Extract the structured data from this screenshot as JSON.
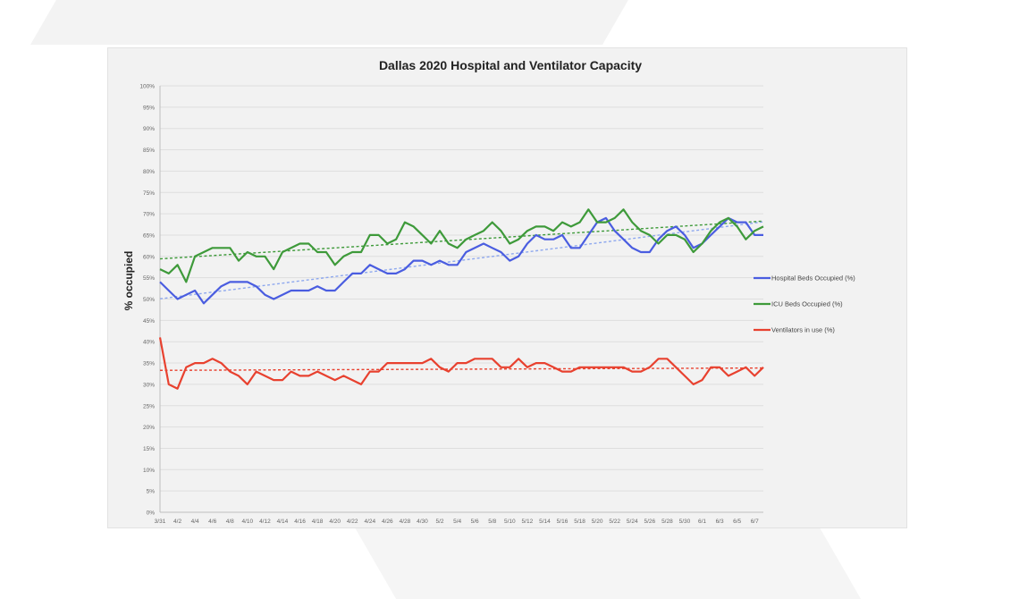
{
  "chart_data": {
    "type": "line",
    "title": "Dallas 2020 Hospital and Ventilator Capacity",
    "xlabel": "",
    "ylabel": "% occupied",
    "ylim": [
      0,
      100
    ],
    "yticks": [
      "0%",
      "5%",
      "10%",
      "15%",
      "20%",
      "25%",
      "30%",
      "35%",
      "40%",
      "45%",
      "50%",
      "55%",
      "60%",
      "65%",
      "70%",
      "75%",
      "80%",
      "85%",
      "90%",
      "95%",
      "100%"
    ],
    "x": [
      "3/31",
      "4/1",
      "4/2",
      "4/3",
      "4/4",
      "4/5",
      "4/6",
      "4/7",
      "4/8",
      "4/9",
      "4/10",
      "4/11",
      "4/12",
      "4/13",
      "4/14",
      "4/15",
      "4/16",
      "4/17",
      "4/18",
      "4/19",
      "4/20",
      "4/21",
      "4/22",
      "4/23",
      "4/24",
      "4/25",
      "4/26",
      "4/27",
      "4/28",
      "4/29",
      "4/30",
      "5/1",
      "5/2",
      "5/3",
      "5/4",
      "5/5",
      "5/6",
      "5/7",
      "5/8",
      "5/9",
      "5/10",
      "5/11",
      "5/12",
      "5/13",
      "5/14",
      "5/15",
      "5/16",
      "5/17",
      "5/18",
      "5/19",
      "5/20",
      "5/21",
      "5/22",
      "5/23",
      "5/24",
      "5/25",
      "5/26",
      "5/27",
      "5/28",
      "5/29",
      "5/30",
      "5/31",
      "6/1",
      "6/2",
      "6/3",
      "6/4",
      "6/5",
      "6/6",
      "6/7",
      "6/8"
    ],
    "xtick_labels": [
      "3/31",
      "4/2",
      "4/4",
      "4/6",
      "4/8",
      "4/10",
      "4/12",
      "4/14",
      "4/16",
      "4/18",
      "4/20",
      "4/22",
      "4/24",
      "4/26",
      "4/28",
      "4/30",
      "5/2",
      "5/4",
      "5/6",
      "5/8",
      "5/10",
      "5/12",
      "5/14",
      "5/16",
      "5/18",
      "5/20",
      "5/22",
      "5/24",
      "5/26",
      "5/28",
      "5/30",
      "6/1",
      "6/3",
      "6/5",
      "6/7"
    ],
    "series": [
      {
        "name": "Hospital Beds Occupied (%)",
        "color": "#4a5de0",
        "trend_color": "#8ea8ee",
        "values": [
          54,
          52,
          50,
          51,
          52,
          49,
          51,
          53,
          54,
          54,
          54,
          53,
          51,
          50,
          51,
          52,
          52,
          52,
          53,
          52,
          52,
          54,
          56,
          56,
          58,
          57,
          56,
          56,
          57,
          59,
          59,
          58,
          59,
          58,
          58,
          61,
          62,
          63,
          62,
          61,
          59,
          60,
          63,
          65,
          64,
          64,
          65,
          62,
          62,
          65,
          68,
          69,
          66,
          64,
          62,
          61,
          61,
          64,
          66,
          67,
          65,
          62,
          63,
          65,
          67,
          69,
          68,
          68,
          65,
          65
        ]
      },
      {
        "name": "ICU Beds Occupied (%)",
        "color": "#3e9a3a",
        "trend_color": "#3e9a3a",
        "values": [
          57,
          56,
          58,
          54,
          60,
          61,
          62,
          62,
          62,
          59,
          61,
          60,
          60,
          57,
          61,
          62,
          63,
          63,
          61,
          61,
          58,
          60,
          61,
          61,
          65,
          65,
          63,
          64,
          68,
          67,
          65,
          63,
          66,
          63,
          62,
          64,
          65,
          66,
          68,
          66,
          63,
          64,
          66,
          67,
          67,
          66,
          68,
          67,
          68,
          71,
          68,
          68,
          69,
          71,
          68,
          66,
          65,
          63,
          65,
          65,
          64,
          61,
          63,
          66,
          68,
          69,
          67,
          64,
          66,
          67
        ]
      },
      {
        "name": "Ventilators in use (%)",
        "color": "#e8412f",
        "trend_color": "#e8412f",
        "values": [
          41,
          30,
          29,
          34,
          35,
          35,
          36,
          35,
          33,
          32,
          30,
          33,
          32,
          31,
          31,
          33,
          32,
          32,
          33,
          32,
          31,
          32,
          31,
          30,
          33,
          33,
          35,
          35,
          35,
          35,
          35,
          36,
          34,
          33,
          35,
          35,
          36,
          36,
          36,
          34,
          34,
          36,
          34,
          35,
          35,
          34,
          33,
          33,
          34,
          34,
          34,
          34,
          34,
          34,
          33,
          33,
          34,
          36,
          36,
          34,
          32,
          30,
          31,
          34,
          34,
          32,
          33,
          34,
          32,
          34
        ]
      }
    ],
    "trendlines": true,
    "grid": true,
    "legend_position": "right"
  }
}
